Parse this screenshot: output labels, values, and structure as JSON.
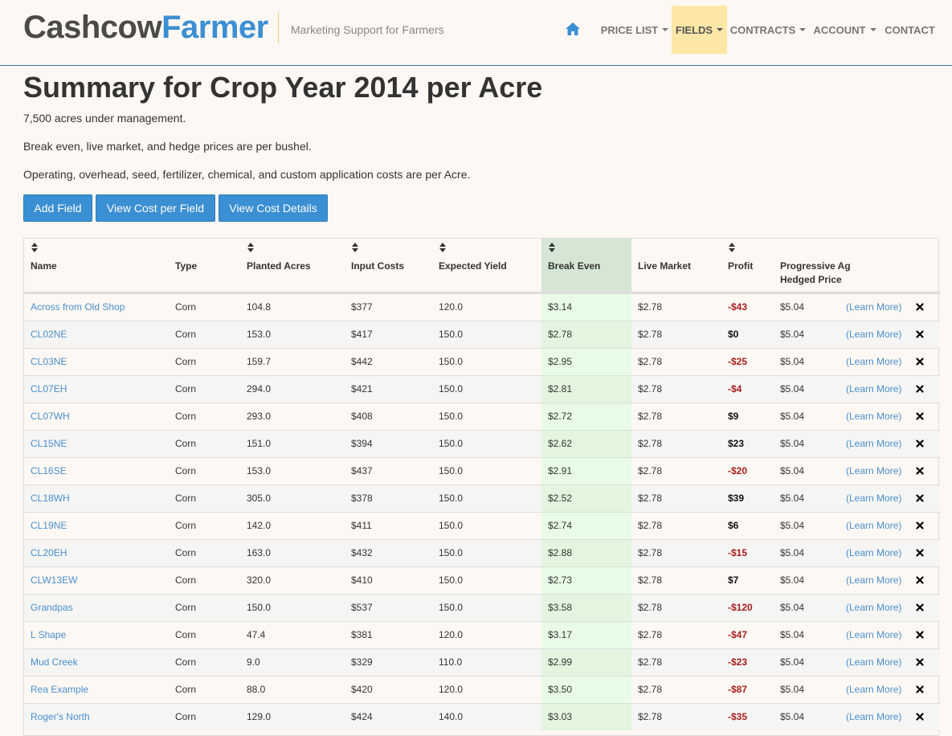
{
  "brand": {
    "part1": "Cashcow",
    "part2": "Farmer",
    "tagline": "Marketing Support for Farmers"
  },
  "nav": {
    "home_icon": "home-icon",
    "items": [
      {
        "label": "PRICE LIST",
        "dropdown": true,
        "active": false
      },
      {
        "label": "FIELDS",
        "dropdown": true,
        "active": true
      },
      {
        "label": "CONTRACTS",
        "dropdown": true,
        "active": false
      },
      {
        "label": "ACCOUNT",
        "dropdown": true,
        "active": false
      },
      {
        "label": "CONTACT",
        "dropdown": false,
        "active": false
      }
    ]
  },
  "page": {
    "title": "Summary for Crop Year 2014 per Acre",
    "acres_text": "7,500 acres under management.",
    "prices_note": "Break even, live market, and hedge prices are per bushel.",
    "costs_note": "Operating, overhead, seed, fertilizer, chemical, and custom application costs are per Acre."
  },
  "buttons": {
    "add_field": "Add Field",
    "view_cost_per_field": "View Cost per Field",
    "view_cost_details": "View Cost Details"
  },
  "table": {
    "headers": {
      "name": "Name",
      "type": "Type",
      "planted_acres": "Planted Acres",
      "input_costs": "Input Costs",
      "expected_yield": "Expected Yield",
      "break_even": "Break Even",
      "live_market": "Live Market",
      "profit": "Profit",
      "hedged_line1": "Progressive Ag",
      "hedged_line2": "Hedged Price"
    },
    "learn_more": "(Learn More)",
    "delete_icon": "close-icon",
    "colors": {
      "negative_profit": "#a81e1e",
      "link": "#4a8fcd",
      "break_even_bg": "#e8fbe6"
    },
    "rows": [
      {
        "name": "Across from Old Shop",
        "type": "Corn",
        "acres": "104.8",
        "input": "$377",
        "yield": "120.0",
        "be": "$3.14",
        "live": "$2.78",
        "profit": "-$43",
        "hedged": "$5.04"
      },
      {
        "name": "CL02NE",
        "type": "Corn",
        "acres": "153.0",
        "input": "$417",
        "yield": "150.0",
        "be": "$2.78",
        "live": "$2.78",
        "profit": "$0",
        "hedged": "$5.04"
      },
      {
        "name": "CL03NE",
        "type": "Corn",
        "acres": "159.7",
        "input": "$442",
        "yield": "150.0",
        "be": "$2.95",
        "live": "$2.78",
        "profit": "-$25",
        "hedged": "$5.04"
      },
      {
        "name": "CL07EH",
        "type": "Corn",
        "acres": "294.0",
        "input": "$421",
        "yield": "150.0",
        "be": "$2.81",
        "live": "$2.78",
        "profit": "-$4",
        "hedged": "$5.04"
      },
      {
        "name": "CL07WH",
        "type": "Corn",
        "acres": "293.0",
        "input": "$408",
        "yield": "150.0",
        "be": "$2.72",
        "live": "$2.78",
        "profit": "$9",
        "hedged": "$5.04"
      },
      {
        "name": "CL15NE",
        "type": "Corn",
        "acres": "151.0",
        "input": "$394",
        "yield": "150.0",
        "be": "$2.62",
        "live": "$2.78",
        "profit": "$23",
        "hedged": "$5.04"
      },
      {
        "name": "CL16SE",
        "type": "Corn",
        "acres": "153.0",
        "input": "$437",
        "yield": "150.0",
        "be": "$2.91",
        "live": "$2.78",
        "profit": "-$20",
        "hedged": "$5.04"
      },
      {
        "name": "CL18WH",
        "type": "Corn",
        "acres": "305.0",
        "input": "$378",
        "yield": "150.0",
        "be": "$2.52",
        "live": "$2.78",
        "profit": "$39",
        "hedged": "$5.04"
      },
      {
        "name": "CL19NE",
        "type": "Corn",
        "acres": "142.0",
        "input": "$411",
        "yield": "150.0",
        "be": "$2.74",
        "live": "$2.78",
        "profit": "$6",
        "hedged": "$5.04"
      },
      {
        "name": "CL20EH",
        "type": "Corn",
        "acres": "163.0",
        "input": "$432",
        "yield": "150.0",
        "be": "$2.88",
        "live": "$2.78",
        "profit": "-$15",
        "hedged": "$5.04"
      },
      {
        "name": "CLW13EW",
        "type": "Corn",
        "acres": "320.0",
        "input": "$410",
        "yield": "150.0",
        "be": "$2.73",
        "live": "$2.78",
        "profit": "$7",
        "hedged": "$5.04"
      },
      {
        "name": "Grandpas",
        "type": "Corn",
        "acres": "150.0",
        "input": "$537",
        "yield": "150.0",
        "be": "$3.58",
        "live": "$2.78",
        "profit": "-$120",
        "hedged": "$5.04"
      },
      {
        "name": "L Shape",
        "type": "Corn",
        "acres": "47.4",
        "input": "$381",
        "yield": "120.0",
        "be": "$3.17",
        "live": "$2.78",
        "profit": "-$47",
        "hedged": "$5.04"
      },
      {
        "name": "Mud Creek",
        "type": "Corn",
        "acres": "9.0",
        "input": "$329",
        "yield": "110.0",
        "be": "$2.99",
        "live": "$2.78",
        "profit": "-$23",
        "hedged": "$5.04"
      },
      {
        "name": "Rea Example",
        "type": "Corn",
        "acres": "88.0",
        "input": "$420",
        "yield": "120.0",
        "be": "$3.50",
        "live": "$2.78",
        "profit": "-$87",
        "hedged": "$5.04"
      },
      {
        "name": "Roger's North",
        "type": "Corn",
        "acres": "129.0",
        "input": "$424",
        "yield": "140.0",
        "be": "$3.03",
        "live": "$2.78",
        "profit": "-$35",
        "hedged": "$5.04"
      }
    ]
  }
}
